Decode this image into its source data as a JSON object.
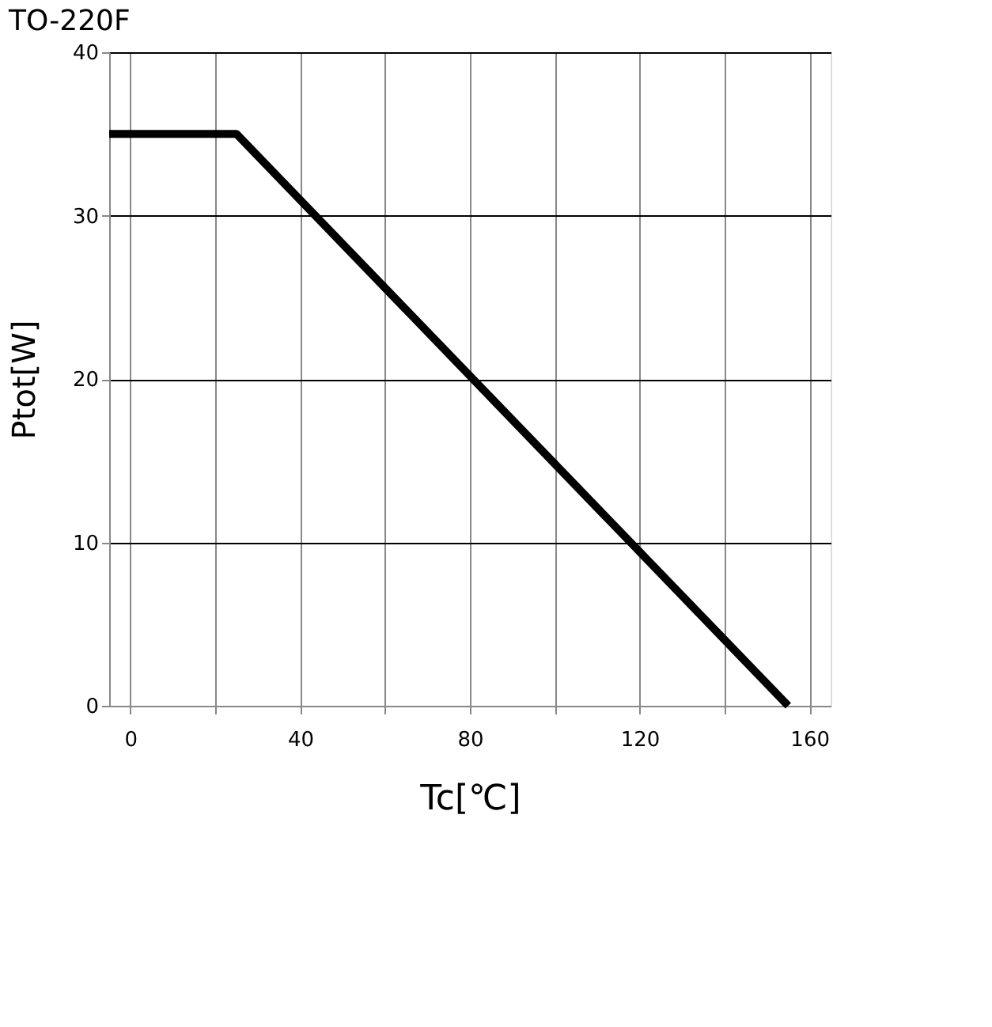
{
  "chart_data": {
    "type": "line",
    "title": "TO-220F",
    "xlabel": "Tc[℃]",
    "ylabel": "Ptot[W]",
    "x": [
      -5,
      25,
      155
    ],
    "series": [
      {
        "color": "#000000",
        "values": [
          35,
          35,
          0
        ]
      }
    ],
    "xlim": [
      -5,
      165
    ],
    "xticks": [
      0,
      {
        "value": 20,
        "label": null
      },
      40,
      {
        "value": 60,
        "label": null
      },
      80,
      {
        "value": 100,
        "label": null
      },
      120,
      {
        "value": 140,
        "label": null
      },
      160
    ],
    "ylim": [
      0,
      40
    ],
    "yticks": [
      0,
      10,
      20,
      30,
      40
    ],
    "grid": true,
    "marker": "none",
    "line_style": "solid"
  }
}
